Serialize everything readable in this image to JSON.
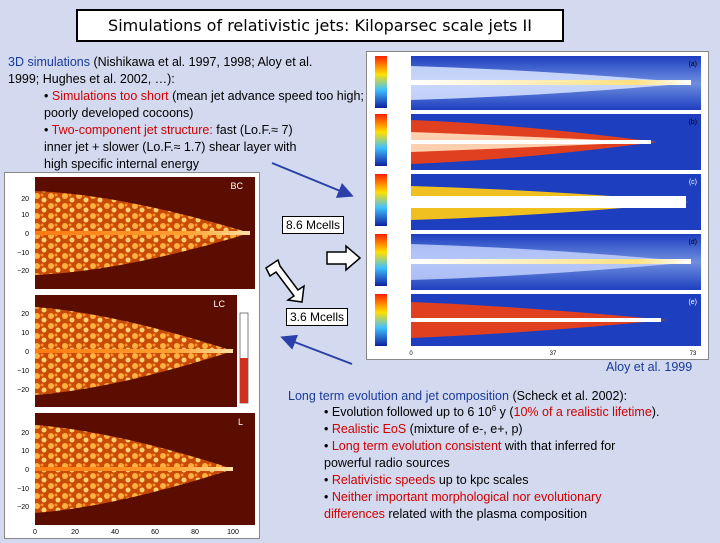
{
  "title": "Simulations of relativistic jets: Kiloparsec scale jets II",
  "block1": {
    "ref_highlight": "3D simulations",
    "ref_rest_line1": " (Nishikawa et al. 1997, 1998; Aloy et al.",
    "ref_line2": "1999; Hughes et al. 2002, …):",
    "b1_red": "Simulations too short",
    "b1_rest": " (mean jet advance speed too high; poorly developed cocoons)",
    "b2_red": "Two-component jet structure:",
    "b2_rest_a": " fast (Lo.F.",
    "b2_approx": "≈",
    "b2_rest_b": " 7)",
    "b2_line2_a": "inner jet + slower (Lo.F.",
    "b2_line2_b": " 1.7) shear layer with",
    "b2_line3": "high specific internal energy"
  },
  "labels": {
    "cells_top": "8.6 Mcells",
    "cells_bottom": "3.6 Mcells",
    "caption": "Aloy et al. 1999"
  },
  "left_sim": {
    "panel_labels": [
      "BC",
      "LC",
      "L"
    ],
    "yticks_top": [
      "20",
      "10",
      "0",
      "−10",
      "−20"
    ],
    "yticks_mid": [
      "20",
      "10",
      "0",
      "−10",
      "−20"
    ],
    "yticks_bot": [
      "20",
      "10",
      "0",
      "−10",
      "−20"
    ],
    "xticks": [
      "0",
      "20",
      "40",
      "60",
      "80",
      "100"
    ]
  },
  "right_sim": {
    "panel_labels": [
      "(a)",
      "(b)",
      "(c)",
      "(d)",
      "(e)"
    ],
    "xticks": [
      "0",
      "37",
      "73"
    ]
  },
  "block2": {
    "ref_highlight": "Long term evolution and jet composition",
    "ref_rest": " (Scheck et al. 2002):",
    "i1_a": "Evolution followed up to 6 10",
    "i1_sup": "6",
    "i1_b": " y (",
    "i1_blue": "10% of a realistic lifetime",
    "i1_c": ").",
    "i2_red": "Realistic EoS",
    "i2_rest": " (mixture of e-, e+, p)",
    "i3_red": "Long term evolution consistent",
    "i3_rest": " with that inferred for",
    "i3_line2": "powerful radio sources",
    "i4_red": "Relativistic speeds",
    "i4_rest": " up to kpc scales",
    "i5_red": "Neither important morphological nor evolutionary",
    "i5_line2_red": "differences",
    "i5_line2_rest": " related with the plasma composition"
  },
  "colors": {
    "background": "#d3d9ee",
    "highlight_red": "#d00000",
    "highlight_blue": "#1a3a9a",
    "arrow_blue": "#2a3fa8"
  }
}
